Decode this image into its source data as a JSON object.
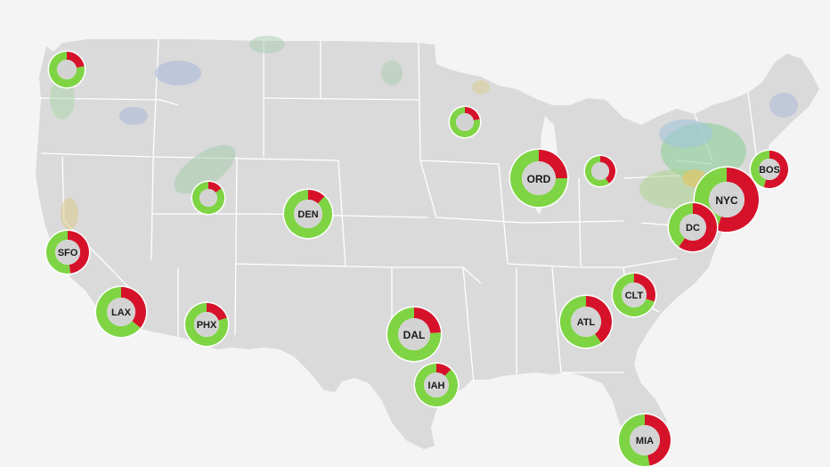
{
  "colors": {
    "on_time": "#7ed443",
    "delayed": "#d6122b",
    "land": "#dadada",
    "background": "#f4f4f4",
    "center": "#d3d3d3"
  },
  "airports": [
    {
      "id": "seattle",
      "code": "",
      "delayed_fraction": 0.22
    },
    {
      "id": "minneapolis",
      "code": "",
      "delayed_fraction": 0.22
    },
    {
      "id": "salt-lake",
      "code": "",
      "delayed_fraction": 0.15
    },
    {
      "id": "detroit",
      "code": "",
      "delayed_fraction": 0.4
    },
    {
      "id": "bos",
      "code": "BOS",
      "delayed_fraction": 0.55
    },
    {
      "id": "ord",
      "code": "ORD",
      "delayed_fraction": 0.25
    },
    {
      "id": "den",
      "code": "DEN",
      "delayed_fraction": 0.12
    },
    {
      "id": "nyc",
      "code": "NYC",
      "delayed_fraction": 0.55
    },
    {
      "id": "dc",
      "code": "DC",
      "delayed_fraction": 0.6
    },
    {
      "id": "sfo",
      "code": "SFO",
      "delayed_fraction": 0.48
    },
    {
      "id": "lax",
      "code": "LAX",
      "delayed_fraction": 0.36
    },
    {
      "id": "phx",
      "code": "PHX",
      "delayed_fraction": 0.2
    },
    {
      "id": "dal",
      "code": "DAL",
      "delayed_fraction": 0.24
    },
    {
      "id": "iah",
      "code": "IAH",
      "delayed_fraction": 0.12
    },
    {
      "id": "atl",
      "code": "ATL",
      "delayed_fraction": 0.4
    },
    {
      "id": "clt",
      "code": "CLT",
      "delayed_fraction": 0.3
    },
    {
      "id": "mia",
      "code": "MIA",
      "delayed_fraction": 0.47
    }
  ]
}
